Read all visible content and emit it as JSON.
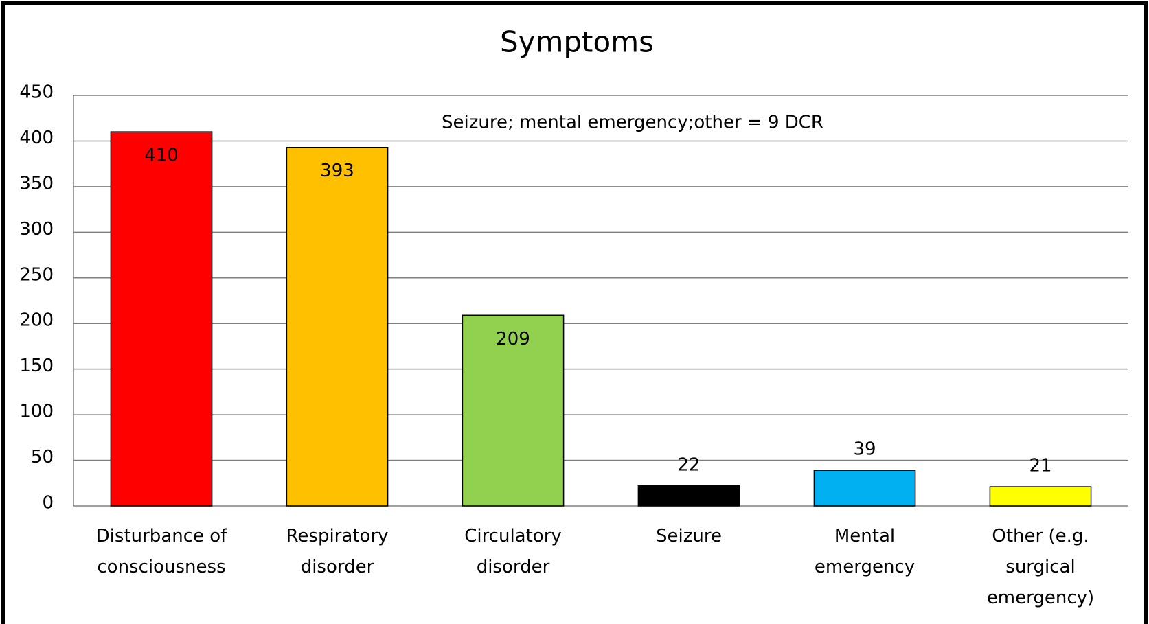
{
  "chart_data": {
    "type": "bar",
    "title": "Symptoms",
    "annotation": "Seizure; mental emergency;other = 9 DCR",
    "categories": [
      "Disturbance of consciousness",
      "Respiratory disorder",
      "Circulatory disorder",
      "Seizure",
      "Mental emergency",
      "Other (e.g. surgical emergency)"
    ],
    "values": [
      410,
      393,
      209,
      22,
      39,
      21
    ],
    "colors": [
      "#ff0000",
      "#ffc000",
      "#92d050",
      "#000000",
      "#00b0f0",
      "#ffff00"
    ],
    "ylim": [
      0,
      450
    ],
    "yticks": [
      0,
      50,
      100,
      150,
      200,
      250,
      300,
      350,
      400,
      450
    ],
    "grid": true
  }
}
